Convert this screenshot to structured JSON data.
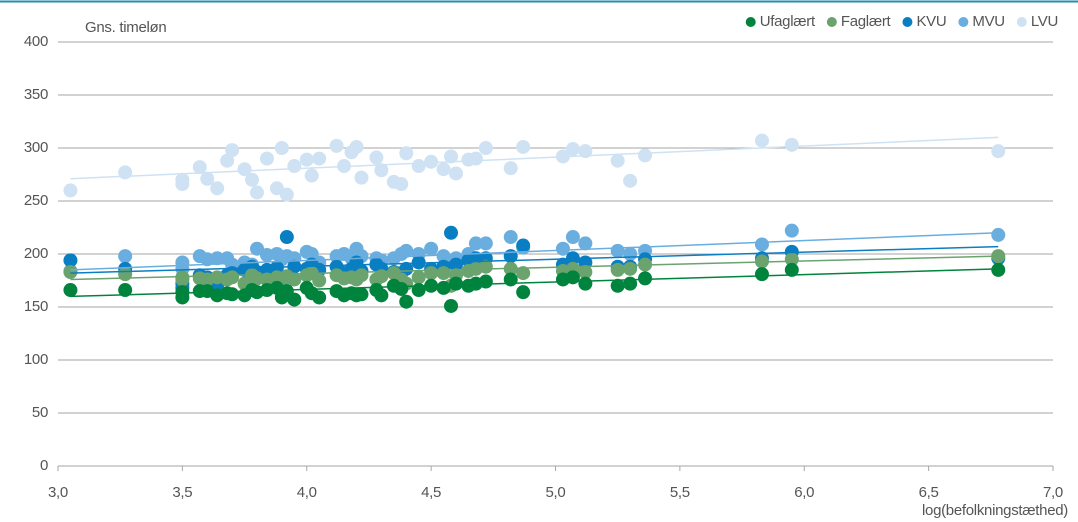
{
  "chart_data": {
    "type": "scatter",
    "y_axis_label": "Gns. timeløn",
    "x_axis_label": "log(befolkningstæthed)",
    "x": [
      3.05,
      3.27,
      3.5,
      3.5,
      3.57,
      3.6,
      3.64,
      3.68,
      3.7,
      3.75,
      3.78,
      3.8,
      3.84,
      3.88,
      3.9,
      3.92,
      3.95,
      4.0,
      4.02,
      4.05,
      4.12,
      4.15,
      4.18,
      4.2,
      4.22,
      4.28,
      4.3,
      4.35,
      4.38,
      4.4,
      4.45,
      4.5,
      4.55,
      4.58,
      4.6,
      4.65,
      4.68,
      4.72,
      4.82,
      4.87,
      5.03,
      5.07,
      5.12,
      5.25,
      5.3,
      5.36,
      5.83,
      5.95,
      6.78
    ],
    "series": [
      {
        "name": "Ufaglært",
        "color": "#00843d",
        "values": [
          166,
          166,
          159,
          164,
          165,
          165,
          161,
          163,
          162,
          161,
          166,
          164,
          166,
          168,
          159,
          165,
          157,
          168,
          163,
          159,
          165,
          161,
          163,
          161,
          162,
          166,
          161,
          170,
          167,
          155,
          166,
          170,
          168,
          151,
          172,
          170,
          172,
          174,
          176,
          164,
          176,
          178,
          172,
          170,
          172,
          177,
          181,
          185,
          185
        ],
        "trend": {
          "x": [
            3.05,
            6.78
          ],
          "y": [
            160,
            186
          ]
        }
      },
      {
        "name": "Faglært",
        "color": "#6aa36e",
        "values": [
          183,
          181,
          176,
          178,
          177,
          176,
          178,
          176,
          178,
          172,
          180,
          177,
          176,
          178,
          172,
          179,
          176,
          180,
          182,
          175,
          180,
          177,
          178,
          176,
          180,
          176,
          179,
          182,
          176,
          172,
          178,
          182,
          182,
          170,
          180,
          184,
          186,
          188,
          186,
          182,
          184,
          186,
          183,
          185,
          186,
          190,
          193,
          195,
          198
        ],
        "trend": {
          "x": [
            3.05,
            6.78
          ],
          "y": [
            176,
            198
          ]
        }
      },
      {
        "name": "KVU",
        "color": "#0a7ec2",
        "values": [
          194,
          186,
          172,
          168,
          180,
          178,
          171,
          180,
          182,
          185,
          188,
          183,
          185,
          187,
          175,
          216,
          188,
          186,
          190,
          185,
          188,
          182,
          186,
          192,
          184,
          190,
          186,
          183,
          182,
          186,
          192,
          186,
          188,
          220,
          190,
          194,
          196,
          196,
          198,
          208,
          190,
          196,
          192,
          188,
          188,
          195,
          196,
          202,
          196
        ],
        "trend": {
          "x": [
            3.05,
            6.78
          ],
          "y": [
            182,
            207
          ]
        }
      },
      {
        "name": "MVU",
        "color": "#6aaee0",
        "values": [
          184,
          198,
          192,
          186,
          198,
          195,
          196,
          196,
          190,
          192,
          190,
          205,
          199,
          200,
          195,
          198,
          196,
          202,
          200,
          192,
          198,
          200,
          196,
          205,
          198,
          196,
          194,
          196,
          200,
          203,
          200,
          205,
          198,
          194,
          196,
          200,
          210,
          210,
          216,
          206,
          205,
          216,
          210,
          203,
          200,
          203,
          209,
          222,
          218
        ],
        "trend": {
          "x": [
            3.05,
            6.78
          ],
          "y": [
            185,
            220
          ]
        }
      },
      {
        "name": "LVU",
        "color": "#cfe2f3",
        "values": [
          260,
          277,
          270,
          266,
          282,
          271,
          262,
          288,
          298,
          280,
          270,
          258,
          290,
          262,
          300,
          256,
          283,
          289,
          274,
          290,
          302,
          283,
          296,
          301,
          272,
          291,
          279,
          268,
          266,
          295,
          283,
          287,
          280,
          292,
          276,
          289,
          290,
          300,
          281,
          301,
          292,
          299,
          297,
          288,
          269,
          293,
          307,
          303,
          297
        ],
        "trend": {
          "x": [
            3.05,
            6.78
          ],
          "y": [
            271,
            310
          ]
        }
      }
    ],
    "xlim": [
      3.0,
      7.0
    ],
    "xticks": [
      {
        "value": 3.0,
        "label": "3,0"
      },
      {
        "value": 3.5,
        "label": "3,5"
      },
      {
        "value": 4.0,
        "label": "4,0"
      },
      {
        "value": 4.5,
        "label": "4,5"
      },
      {
        "value": 5.0,
        "label": "5,0"
      },
      {
        "value": 5.5,
        "label": "5,5"
      },
      {
        "value": 6.0,
        "label": "6,0"
      },
      {
        "value": 6.5,
        "label": "6,5"
      },
      {
        "value": 7.0,
        "label": "7,0"
      }
    ],
    "ylim": [
      0,
      400
    ],
    "yticks": [
      0,
      50,
      100,
      150,
      200,
      250,
      300,
      350,
      400
    ],
    "grid": true,
    "legend": "top-right"
  }
}
